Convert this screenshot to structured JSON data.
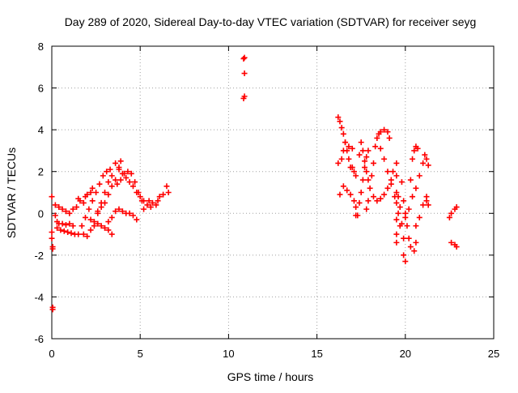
{
  "chart_data": {
    "type": "scatter",
    "title": "Day 289 of 2020, Sidereal Day-to-day VTEC variation (SDTVAR) for receiver seyg",
    "xlabel": "GPS time / hours",
    "ylabel": "SDTVAR / TECUs",
    "xlim": [
      0,
      25
    ],
    "ylim": [
      -6,
      8
    ],
    "x_ticks": [
      0,
      5,
      10,
      15,
      20,
      25
    ],
    "x_tick_labels": [
      "0",
      "5",
      "10",
      "15",
      "20",
      "25"
    ],
    "y_ticks": [
      -6,
      -4,
      -2,
      0,
      2,
      4,
      6,
      8
    ],
    "y_tick_labels": [
      "-6",
      "-4",
      "-2",
      "0",
      "2",
      "4",
      "6",
      "8"
    ],
    "grid": true,
    "marker": "plus",
    "colors": {
      "series": "#ff0000",
      "grid": "#a0a0a0",
      "axis": "#000000"
    },
    "series": [
      {
        "name": "SDTVAR",
        "points": [
          [
            0.0,
            0.8
          ],
          [
            0.0,
            -0.9
          ],
          [
            0.0,
            -1.2
          ],
          [
            0.05,
            -1.6
          ],
          [
            0.05,
            -1.7
          ],
          [
            0.05,
            -4.5
          ],
          [
            0.05,
            -4.6
          ],
          [
            0.2,
            -0.1
          ],
          [
            0.3,
            -0.4
          ],
          [
            0.4,
            -0.5
          ],
          [
            0.6,
            -0.5
          ],
          [
            0.8,
            -0.55
          ],
          [
            1.0,
            -0.5
          ],
          [
            1.2,
            -0.6
          ],
          [
            0.2,
            0.4
          ],
          [
            0.4,
            0.3
          ],
          [
            0.6,
            0.2
          ],
          [
            0.8,
            0.1
          ],
          [
            1.0,
            0.0
          ],
          [
            1.2,
            0.2
          ],
          [
            1.4,
            0.3
          ],
          [
            0.3,
            -0.7
          ],
          [
            0.5,
            -0.8
          ],
          [
            0.7,
            -0.85
          ],
          [
            0.9,
            -0.9
          ],
          [
            1.1,
            -0.95
          ],
          [
            1.3,
            -1.0
          ],
          [
            1.5,
            -1.0
          ],
          [
            1.5,
            0.7
          ],
          [
            1.6,
            0.6
          ],
          [
            1.8,
            0.5
          ],
          [
            1.9,
            0.8
          ],
          [
            2.0,
            0.9
          ],
          [
            2.2,
            1.0
          ],
          [
            2.3,
            1.2
          ],
          [
            1.7,
            -0.6
          ],
          [
            1.9,
            -0.2
          ],
          [
            2.1,
            0.2
          ],
          [
            2.3,
            0.6
          ],
          [
            2.5,
            1.0
          ],
          [
            2.7,
            1.4
          ],
          [
            2.9,
            1.8
          ],
          [
            3.1,
            2.0
          ],
          [
            3.3,
            2.1
          ],
          [
            1.8,
            -1.0
          ],
          [
            2.0,
            -1.1
          ],
          [
            2.2,
            -0.8
          ],
          [
            2.4,
            -0.4
          ],
          [
            2.6,
            0.0
          ],
          [
            2.8,
            0.5
          ],
          [
            3.0,
            1.0
          ],
          [
            3.2,
            1.5
          ],
          [
            3.4,
            1.8
          ],
          [
            2.2,
            -0.3
          ],
          [
            2.4,
            -0.6
          ],
          [
            2.6,
            -0.5
          ],
          [
            2.8,
            -0.6
          ],
          [
            3.0,
            -0.7
          ],
          [
            3.2,
            -0.8
          ],
          [
            3.4,
            -1.0
          ],
          [
            2.6,
            0.1
          ],
          [
            2.8,
            0.3
          ],
          [
            3.0,
            0.5
          ],
          [
            3.2,
            0.9
          ],
          [
            3.4,
            1.3
          ],
          [
            3.6,
            1.6
          ],
          [
            3.8,
            2.2
          ],
          [
            3.9,
            2.5
          ],
          [
            3.2,
            -0.4
          ],
          [
            3.4,
            -0.2
          ],
          [
            3.6,
            0.1
          ],
          [
            3.8,
            0.2
          ],
          [
            4.0,
            0.1
          ],
          [
            4.2,
            0.0
          ],
          [
            4.4,
            0.0
          ],
          [
            4.6,
            -0.1
          ],
          [
            4.8,
            -0.3
          ],
          [
            3.6,
            2.4
          ],
          [
            3.8,
            2.1
          ],
          [
            4.0,
            1.9
          ],
          [
            4.2,
            1.7
          ],
          [
            4.4,
            1.5
          ],
          [
            4.6,
            1.3
          ],
          [
            4.8,
            1.0
          ],
          [
            5.0,
            0.8
          ],
          [
            5.2,
            0.6
          ],
          [
            3.7,
            1.4
          ],
          [
            3.9,
            1.6
          ],
          [
            4.1,
            1.9
          ],
          [
            4.3,
            2.0
          ],
          [
            4.5,
            1.9
          ],
          [
            4.7,
            1.5
          ],
          [
            4.9,
            1.0
          ],
          [
            5.1,
            0.6
          ],
          [
            5.2,
            0.2
          ],
          [
            5.4,
            0.4
          ],
          [
            5.5,
            0.6
          ],
          [
            5.6,
            0.3
          ],
          [
            5.7,
            0.5
          ],
          [
            5.9,
            0.4
          ],
          [
            6.0,
            0.6
          ],
          [
            6.1,
            0.8
          ],
          [
            6.3,
            0.9
          ],
          [
            6.5,
            1.3
          ],
          [
            6.6,
            1.0
          ],
          [
            10.85,
            7.4
          ],
          [
            10.9,
            7.45
          ],
          [
            10.9,
            6.7
          ],
          [
            10.9,
            5.6
          ],
          [
            10.85,
            5.5
          ],
          [
            16.2,
            2.4
          ],
          [
            16.4,
            2.6
          ],
          [
            16.5,
            3.0
          ],
          [
            16.6,
            3.4
          ],
          [
            16.8,
            3.2
          ],
          [
            17.0,
            3.1
          ],
          [
            16.2,
            4.6
          ],
          [
            16.3,
            4.4
          ],
          [
            16.4,
            4.1
          ],
          [
            16.5,
            3.8
          ],
          [
            16.6,
            3.4
          ],
          [
            16.7,
            3.0
          ],
          [
            16.8,
            2.6
          ],
          [
            16.9,
            2.2
          ],
          [
            16.3,
            0.9
          ],
          [
            16.5,
            1.3
          ],
          [
            16.7,
            1.1
          ],
          [
            16.9,
            0.9
          ],
          [
            17.1,
            0.6
          ],
          [
            17.2,
            0.3
          ],
          [
            17.0,
            2.2
          ],
          [
            17.1,
            2.0
          ],
          [
            17.2,
            1.8
          ],
          [
            17.2,
            -0.1
          ],
          [
            17.3,
            -0.1
          ],
          [
            17.4,
            0.5
          ],
          [
            17.5,
            1.0
          ],
          [
            17.6,
            1.6
          ],
          [
            17.7,
            2.2
          ],
          [
            17.8,
            2.7
          ],
          [
            17.9,
            3.0
          ],
          [
            17.4,
            2.8
          ],
          [
            17.5,
            3.4
          ],
          [
            17.6,
            3.0
          ],
          [
            17.7,
            2.5
          ],
          [
            17.8,
            2.0
          ],
          [
            17.9,
            1.6
          ],
          [
            17.8,
            0.2
          ],
          [
            17.9,
            0.6
          ],
          [
            18.0,
            1.2
          ],
          [
            18.1,
            1.8
          ],
          [
            18.2,
            2.4
          ],
          [
            18.3,
            3.2
          ],
          [
            18.4,
            3.6
          ],
          [
            18.5,
            3.8
          ],
          [
            18.6,
            3.9
          ],
          [
            18.8,
            4.0
          ],
          [
            19.0,
            3.9
          ],
          [
            19.1,
            3.6
          ],
          [
            18.2,
            0.8
          ],
          [
            18.4,
            0.6
          ],
          [
            18.6,
            0.7
          ],
          [
            18.8,
            0.9
          ],
          [
            19.0,
            1.2
          ],
          [
            19.2,
            1.6
          ],
          [
            19.3,
            2.0
          ],
          [
            18.6,
            3.1
          ],
          [
            18.8,
            2.6
          ],
          [
            19.0,
            2.0
          ],
          [
            19.2,
            1.4
          ],
          [
            19.4,
            0.8
          ],
          [
            19.6,
            0.0
          ],
          [
            19.7,
            -0.6
          ],
          [
            19.5,
            2.4
          ],
          [
            19.5,
            1.8
          ],
          [
            19.5,
            1.0
          ],
          [
            19.5,
            0.5
          ],
          [
            19.5,
            -0.3
          ],
          [
            19.5,
            -1.0
          ],
          [
            19.5,
            -1.4
          ],
          [
            19.6,
            0.8
          ],
          [
            19.7,
            0.3
          ],
          [
            19.8,
            -0.5
          ],
          [
            19.9,
            -1.2
          ],
          [
            19.9,
            -2.0
          ],
          [
            20.0,
            -2.3
          ],
          [
            19.8,
            1.5
          ],
          [
            19.9,
            0.6
          ],
          [
            20.0,
            0.0
          ],
          [
            20.1,
            -0.6
          ],
          [
            20.2,
            -1.2
          ],
          [
            20.3,
            -1.6
          ],
          [
            20.5,
            -1.8
          ],
          [
            20.6,
            -1.4
          ],
          [
            20.3,
            1.6
          ],
          [
            20.4,
            2.6
          ],
          [
            20.5,
            3.0
          ],
          [
            20.6,
            3.2
          ],
          [
            20.7,
            3.1
          ],
          [
            20.0,
            -0.2
          ],
          [
            20.2,
            0.2
          ],
          [
            20.4,
            0.8
          ],
          [
            20.6,
            1.2
          ],
          [
            20.8,
            1.8
          ],
          [
            21.0,
            2.4
          ],
          [
            21.1,
            2.8
          ],
          [
            21.2,
            2.6
          ],
          [
            21.3,
            2.3
          ],
          [
            20.6,
            -0.6
          ],
          [
            20.8,
            -0.2
          ],
          [
            21.0,
            0.4
          ],
          [
            21.2,
            0.8
          ],
          [
            21.2,
            0.6
          ],
          [
            21.3,
            0.4
          ],
          [
            22.5,
            -0.2
          ],
          [
            22.6,
            0.0
          ],
          [
            22.8,
            0.2
          ],
          [
            22.9,
            0.3
          ],
          [
            22.6,
            -1.4
          ],
          [
            22.8,
            -1.5
          ],
          [
            22.9,
            -1.6
          ]
        ]
      }
    ]
  }
}
